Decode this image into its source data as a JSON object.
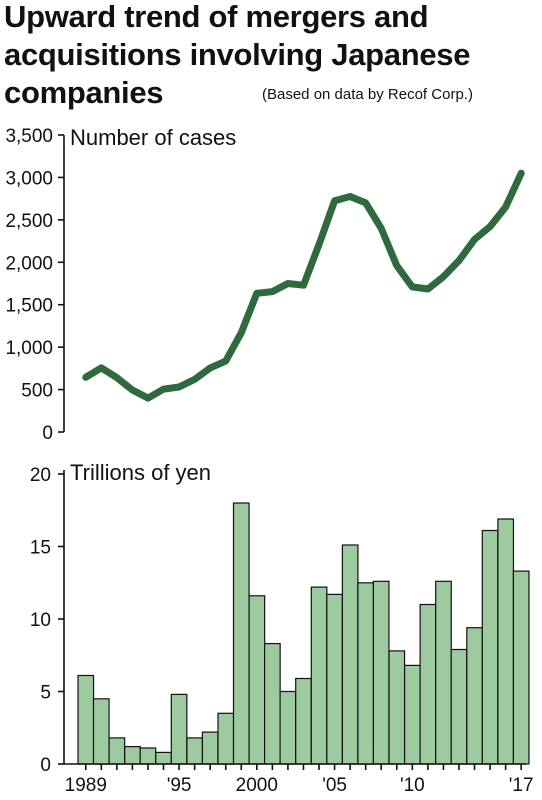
{
  "title": "Upward trend of mergers and acquisitions involving Japanese companies",
  "source": "(Based on data by Recof Corp.)",
  "chart_data": [
    {
      "type": "line",
      "ylabel": "Number of cases",
      "ylim": [
        0,
        3500
      ],
      "yticks": [
        0,
        500,
        1000,
        1500,
        2000,
        2500,
        3000,
        3500
      ],
      "ytick_labels": [
        "0",
        "500",
        "1,000",
        "1,500",
        "2,000",
        "2,500",
        "3,000",
        "3,500"
      ],
      "x": [
        1989,
        1990,
        1991,
        1992,
        1993,
        1994,
        1995,
        1996,
        1997,
        1998,
        1999,
        2000,
        2001,
        2002,
        2003,
        2004,
        2005,
        2006,
        2007,
        2008,
        2009,
        2010,
        2011,
        2012,
        2013,
        2014,
        2015,
        2016,
        2017
      ],
      "series": [
        {
          "values": [
            645,
            755,
            640,
            495,
            400,
            505,
            530,
            620,
            755,
            835,
            1170,
            1635,
            1655,
            1750,
            1730,
            2210,
            2725,
            2775,
            2700,
            2400,
            1960,
            1710,
            1685,
            1830,
            2020,
            2270,
            2420,
            2650,
            3050
          ]
        }
      ],
      "color": "#2e6a3e"
    },
    {
      "type": "bar",
      "ylabel": "Trillions of yen",
      "ylim": [
        0,
        20
      ],
      "yticks": [
        0,
        5,
        10,
        15,
        20
      ],
      "ytick_labels": [
        "0",
        "5",
        "10",
        "15",
        "20"
      ],
      "x": [
        1989,
        1990,
        1991,
        1992,
        1993,
        1994,
        1995,
        1996,
        1997,
        1998,
        1999,
        2000,
        2001,
        2002,
        2003,
        2004,
        2005,
        2006,
        2007,
        2008,
        2009,
        2010,
        2011,
        2012,
        2013,
        2014,
        2015,
        2016,
        2017
      ],
      "xtick_labels": [
        {
          "x": 1989,
          "label": "1989"
        },
        {
          "x": 1995,
          "label": "'95"
        },
        {
          "x": 2000,
          "label": "2000"
        },
        {
          "x": 2005,
          "label": "'05"
        },
        {
          "x": 2010,
          "label": "'10"
        },
        {
          "x": 2017,
          "label": "'17"
        }
      ],
      "series": [
        {
          "values": [
            6.1,
            4.5,
            1.8,
            1.2,
            1.1,
            0.8,
            4.8,
            1.8,
            2.2,
            3.5,
            18.0,
            11.6,
            8.3,
            5.0,
            5.9,
            12.2,
            11.7,
            15.1,
            12.5,
            12.6,
            7.8,
            6.8,
            11.0,
            12.6,
            7.9,
            9.4,
            16.1,
            16.9,
            13.3
          ]
        }
      ],
      "color": "#9ecaa0"
    }
  ]
}
